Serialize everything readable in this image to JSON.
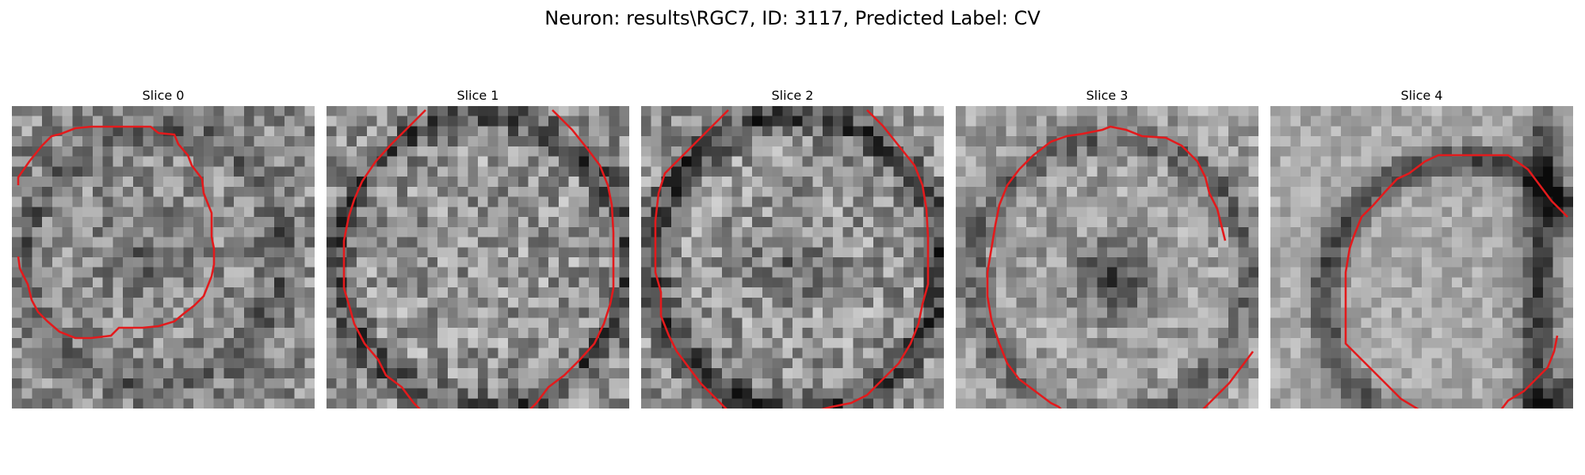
{
  "figure": {
    "title": "Neuron: results\\RGC7, ID: 3117, Predicted Label: CV"
  },
  "colors": {
    "contour": "#e31a1c",
    "colormap": "gray"
  },
  "panels": [
    {
      "title": "Slice 0"
    },
    {
      "title": "Slice 1"
    },
    {
      "title": "Slice 2"
    },
    {
      "title": "Slice 3"
    },
    {
      "title": "Slice 4"
    }
  ]
}
